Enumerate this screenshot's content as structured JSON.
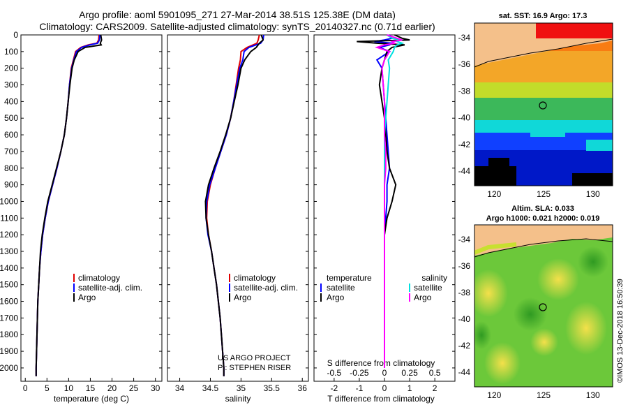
{
  "title": {
    "line1": "Argo profile: aoml 5901095_271 27-Mar-2014 38.51S 125.38E (DM data)",
    "line2": "Climatology: CARS2009. Satellite-adjusted climatology: synTS_20140327.nc (0.71d earlier)"
  },
  "depth_ticks": [
    "0",
    "100",
    "200",
    "300",
    "400",
    "500",
    "600",
    "700",
    "800",
    "900",
    "1000",
    "1100",
    "1200",
    "1300",
    "1400",
    "1500",
    "1600",
    "1700",
    "1800",
    "1900",
    "2000"
  ],
  "panels": {
    "temperature": {
      "xlabel": "temperature (deg C)",
      "xticks": [
        "0",
        "5",
        "10",
        "15",
        "20",
        "25",
        "30"
      ],
      "legend": [
        "climatology",
        "satellite-adj. clim.",
        "Argo"
      ]
    },
    "salinity": {
      "xlabel": "salinity",
      "xticks": [
        "34",
        "34.5",
        "35",
        "35.5",
        "36"
      ],
      "legend": [
        "climatology",
        "satellite-adj. clim.",
        "Argo"
      ],
      "credit1": "US ARGO PROJECT",
      "credit2": "PI: STEPHEN RISER"
    },
    "difference": {
      "xlabel": "T difference from climatology",
      "xticks": [
        "-2",
        "-1",
        "0",
        "1",
        "2"
      ],
      "s_label": "S difference from climatology",
      "s_ticks": [
        "-0.5",
        "-0.25",
        "0",
        "0.25",
        "0.5"
      ],
      "legend_temp_head": "temperature",
      "legend_temp": [
        "satellite",
        "Argo"
      ],
      "legend_sal_head": "salinity",
      "legend_sal": [
        "satellite",
        "Argo"
      ]
    }
  },
  "map_sst": {
    "title": "sat. SST: 16.9 Argo: 17.3",
    "yticks": [
      "-34",
      "-36",
      "-38",
      "-40",
      "-42",
      "-44"
    ],
    "xticks": [
      "120",
      "125",
      "130"
    ]
  },
  "map_sla": {
    "title1": "Altim. SLA: 0.033",
    "title2": "Argo h1000: 0.021 h2000: 0.019",
    "yticks": [
      "-34",
      "-36",
      "-38",
      "-40",
      "-42",
      "-44"
    ],
    "xticks": [
      "120",
      "125",
      "130"
    ]
  },
  "stamp": "©IMOS 13-Dec-2018 16:50:39",
  "colors": {
    "climatology": "#e00000",
    "satellite": "#0000ff",
    "argo": "#000000",
    "sat_salinity": "#00e0e0",
    "argo_salinity": "#ff00ff"
  },
  "chart_data": [
    {
      "type": "line",
      "panel": "temperature",
      "xlabel": "temperature (deg C)",
      "ylabel": "",
      "xlim": [
        -1,
        31.5
      ],
      "ylim": [
        2080,
        0
      ],
      "depth": [
        0,
        30,
        50,
        60,
        75,
        100,
        150,
        200,
        300,
        400,
        500,
        600,
        700,
        800,
        900,
        1000,
        1100,
        1200,
        1300,
        1400,
        1500,
        1600,
        1700,
        1800,
        1900,
        2000,
        2050
      ],
      "series": [
        {
          "name": "climatology",
          "color": "#e00000",
          "values": [
            17.0,
            16.9,
            16.5,
            14.5,
            12.8,
            11.6,
            11.1,
            10.6,
            10.2,
            9.9,
            9.5,
            9.0,
            8.2,
            7.3,
            6.3,
            5.3,
            4.6,
            4.0,
            3.6,
            3.3,
            3.1,
            2.9,
            2.8,
            2.7,
            2.6,
            2.5,
            2.5
          ]
        },
        {
          "name": "satellite-adj. clim.",
          "color": "#0000ff",
          "values": [
            17.2,
            17.1,
            16.7,
            14.9,
            13.0,
            11.8,
            11.2,
            10.7,
            10.2,
            9.9,
            9.5,
            9.0,
            8.2,
            7.3,
            6.3,
            5.3,
            4.6,
            4.0,
            3.6,
            3.3,
            3.1,
            2.9,
            2.8,
            2.7,
            2.6,
            2.5,
            2.5
          ]
        },
        {
          "name": "Argo",
          "color": "#000000",
          "values": [
            17.4,
            17.6,
            17.3,
            17.5,
            13.8,
            12.2,
            11.3,
            10.8,
            10.3,
            9.9,
            9.5,
            9.0,
            8.2,
            7.2,
            6.2,
            5.2,
            4.5,
            3.9,
            3.5,
            3.3,
            3.1,
            2.9,
            2.8,
            2.7,
            2.6,
            2.5,
            2.5
          ]
        }
      ]
    },
    {
      "type": "line",
      "panel": "salinity",
      "xlabel": "salinity",
      "ylabel": "",
      "xlim": [
        33.8,
        36.1
      ],
      "ylim": [
        2080,
        0
      ],
      "depth": [
        0,
        30,
        50,
        75,
        100,
        150,
        200,
        300,
        400,
        500,
        600,
        700,
        800,
        900,
        1000,
        1100,
        1200,
        1300,
        1400,
        1500,
        1600,
        1700,
        1800,
        1900,
        2000,
        2050
      ],
      "series": [
        {
          "name": "climatology",
          "color": "#e00000",
          "values": [
            35.3,
            35.28,
            35.26,
            35.1,
            35.0,
            34.99,
            34.96,
            34.92,
            34.88,
            34.83,
            34.76,
            34.67,
            34.58,
            34.5,
            34.45,
            34.44,
            34.47,
            34.52,
            34.56,
            34.6,
            34.63,
            34.66,
            34.68,
            34.7,
            34.72,
            34.72
          ]
        },
        {
          "name": "satellite-adj. clim.",
          "color": "#0000ff",
          "values": [
            35.37,
            35.36,
            35.32,
            35.13,
            35.05,
            35.03,
            34.98,
            34.93,
            34.88,
            34.83,
            34.76,
            34.67,
            34.58,
            34.49,
            34.44,
            34.43,
            34.46,
            34.52,
            34.56,
            34.6,
            34.63,
            34.66,
            34.68,
            34.7,
            34.72,
            34.72
          ]
        },
        {
          "name": "Argo",
          "color": "#000000",
          "values": [
            35.33,
            35.36,
            35.3,
            35.25,
            35.16,
            35.06,
            35.0,
            34.95,
            34.89,
            34.83,
            34.75,
            34.66,
            34.56,
            34.47,
            34.42,
            34.43,
            34.47,
            34.52,
            34.56,
            34.6,
            34.63,
            34.66,
            34.68,
            34.7,
            34.72,
            34.72
          ]
        }
      ]
    },
    {
      "type": "line",
      "panel": "difference",
      "xlabel": "T difference from climatology",
      "ylabel": "",
      "xlim": [
        -2.8,
        2.8
      ],
      "ylim": [
        2080,
        0
      ],
      "depth": [
        0,
        20,
        30,
        40,
        50,
        60,
        75,
        100,
        150,
        200,
        300,
        400,
        500,
        600,
        700,
        800,
        900,
        1000,
        1100,
        1200,
        1400,
        1600,
        1800,
        2000
      ],
      "series": [
        {
          "name": "temperature satellite",
          "color": "#0000ff",
          "values": [
            0.2,
            0.3,
            0.0,
            -0.4,
            0.3,
            0.2,
            -0.2,
            0.2,
            -0.3,
            -0.1,
            -0.05,
            0.0,
            0.05,
            0.1,
            0.15,
            0.2,
            0.1,
            0.1,
            0.05,
            0.0,
            0.0,
            0.0,
            0.0,
            0.0
          ]
        },
        {
          "name": "temperature Argo",
          "color": "#000000",
          "values": [
            0.4,
            0.7,
            1.0,
            -1.1,
            -0.3,
            0.8,
            0.3,
            0.1,
            0.0,
            -0.1,
            -0.2,
            -0.1,
            0.0,
            0.05,
            0.1,
            0.2,
            0.45,
            0.3,
            0.1,
            0.0,
            0.0,
            0.0,
            0.0,
            0.0
          ]
        },
        {
          "name": "salinity satellite",
          "color": "#00e0e0",
          "values": [
            0.1,
            0.3,
            0.6,
            0.5,
            0.7,
            0.5,
            0.4,
            0.35,
            0.15,
            0.2,
            0.15,
            0.1,
            0.05,
            0.0,
            0.0,
            0.0,
            0.0,
            0.0,
            0.0,
            0.0,
            0.0,
            0.0,
            0.0,
            0.0
          ]
        },
        {
          "name": "salinity Argo",
          "color": "#ff00ff",
          "values": [
            0.1,
            0.5,
            0.7,
            0.3,
            0.4,
            0.0,
            -0.3,
            0.2,
            0.0,
            -0.1,
            -0.05,
            0.0,
            0.0,
            0.0,
            0.05,
            0.05,
            0.0,
            0.0,
            0.0,
            0.0,
            0.0,
            0.0,
            0.0,
            0.0
          ]
        }
      ]
    }
  ]
}
